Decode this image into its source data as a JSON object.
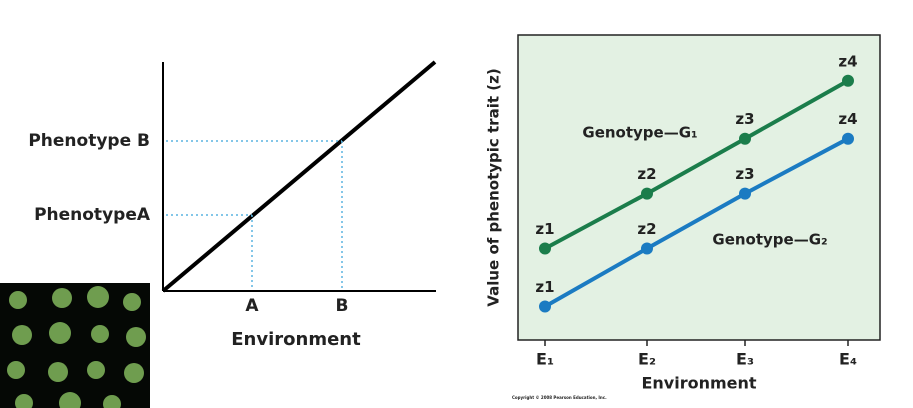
{
  "chart_data": [
    {
      "type": "line",
      "x_label": "Environment",
      "categories": [
        "A",
        "B"
      ],
      "y_categories": [
        "PhenotypeA",
        "Phenotype B"
      ]
    },
    {
      "type": "line",
      "x_label": "Environment",
      "y_label": "Value of phenotypic trait (z)",
      "categories": [
        "E₁",
        "E₂",
        "E₃",
        "E₄"
      ],
      "ylim": [
        0,
        10
      ],
      "background": "#e3f1e3",
      "series": [
        {
          "name": "Genotype—G₁",
          "color": "#1b7d4b",
          "values": [
            3,
            4.8,
            6.6,
            8.5
          ],
          "point_labels": [
            "z1",
            "z2",
            "z3",
            "z4"
          ]
        },
        {
          "name": "Genotype—G₂",
          "color": "#1b7bc2",
          "values": [
            1.1,
            3,
            4.8,
            6.6
          ],
          "point_labels": [
            "z1",
            "z2",
            "z3",
            "z4"
          ]
        }
      ],
      "footnote": "Copyright © 2008 Pearson Education, Inc."
    }
  ]
}
